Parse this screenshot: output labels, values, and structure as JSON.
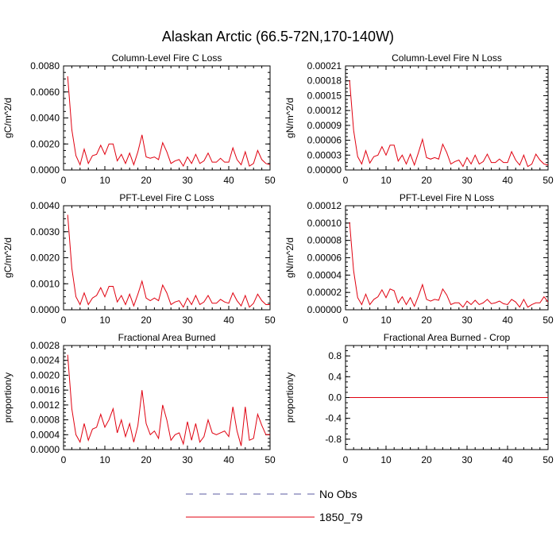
{
  "figure": {
    "title": "Alaskan Arctic (66.5-72N,170-140W)"
  },
  "legend": {
    "entries": [
      {
        "label": "No Obs",
        "color": "#5a5aa0",
        "dash": true
      },
      {
        "label": "1850_79",
        "color": "#e0000f",
        "dash": false
      }
    ]
  },
  "chart_data": [
    {
      "type": "line",
      "title": "Column-Level Fire C Loss",
      "ylabel": "gC/m^2/d",
      "xlim": [
        0,
        50
      ],
      "ylim": [
        0,
        0.008
      ],
      "xticks": [
        "0",
        "10",
        "20",
        "30",
        "40",
        "50"
      ],
      "yticks": [
        "0.0000",
        "0.0020",
        "0.0040",
        "0.0060",
        "0.0080"
      ],
      "series": [
        {
          "color": "#e0000f",
          "x": [
            1,
            2,
            3,
            4,
            5,
            6,
            7,
            8,
            9,
            10,
            11,
            12,
            13,
            14,
            15,
            16,
            17,
            18,
            19,
            20,
            21,
            22,
            23,
            24,
            25,
            26,
            27,
            28,
            29,
            30,
            31,
            32,
            33,
            34,
            35,
            36,
            37,
            38,
            39,
            40,
            41,
            42,
            43,
            44,
            45,
            46,
            47,
            48,
            49,
            50
          ],
          "y": [
            0.0072,
            0.0031,
            0.0011,
            0.0004,
            0.0016,
            0.0005,
            0.0011,
            0.0012,
            0.0019,
            0.0012,
            0.002,
            0.002,
            0.0007,
            0.0012,
            0.0005,
            0.0013,
            0.0004,
            0.0014,
            0.0027,
            0.001,
            0.0009,
            0.001,
            0.0008,
            0.0021,
            0.0014,
            0.0005,
            0.0007,
            0.0008,
            0.0003,
            0.001,
            0.0005,
            0.0012,
            0.0005,
            0.0007,
            0.0013,
            0.0006,
            0.0006,
            0.0009,
            0.0006,
            0.0006,
            0.0017,
            0.0008,
            0.0004,
            0.0014,
            0.0003,
            0.0005,
            0.0015,
            0.0008,
            0.0005,
            0.0004
          ]
        }
      ]
    },
    {
      "type": "line",
      "title": "Column-Level Fire N Loss",
      "ylabel": "gN/m^2/d",
      "xlim": [
        0,
        50
      ],
      "ylim": [
        0,
        0.00021
      ],
      "xticks": [
        "0",
        "10",
        "20",
        "30",
        "40",
        "50"
      ],
      "yticks": [
        "0.00000",
        "0.00003",
        "0.00006",
        "0.00009",
        "0.00012",
        "0.00015",
        "0.00018",
        "0.00021"
      ],
      "series": [
        {
          "color": "#e0000f",
          "x": [
            1,
            2,
            3,
            4,
            5,
            6,
            7,
            8,
            9,
            10,
            11,
            12,
            13,
            14,
            15,
            16,
            17,
            18,
            19,
            20,
            21,
            22,
            23,
            24,
            25,
            26,
            27,
            28,
            29,
            30,
            31,
            32,
            33,
            34,
            35,
            36,
            37,
            38,
            39,
            40,
            41,
            42,
            43,
            44,
            45,
            46,
            47,
            48,
            49,
            50
          ],
          "y": [
            0.000181,
            8e-05,
            2.7e-05,
            1.2e-05,
            3.9e-05,
            1.4e-05,
            2.7e-05,
            3e-05,
            4.7e-05,
            3e-05,
            5e-05,
            5e-05,
            1.8e-05,
            3e-05,
            1.2e-05,
            3.2e-05,
            1e-05,
            3.5e-05,
            6.2e-05,
            2.5e-05,
            2.2e-05,
            2.5e-05,
            2.2e-05,
            5.2e-05,
            3.5e-05,
            1.2e-05,
            1.7e-05,
            2e-05,
            7e-06,
            2.5e-05,
            1.2e-05,
            3e-05,
            1.2e-05,
            1.7e-05,
            3.2e-05,
            1.5e-05,
            1.5e-05,
            2.2e-05,
            1.5e-05,
            1.5e-05,
            3.7e-05,
            2e-05,
            1e-05,
            3e-05,
            7e-06,
            1.2e-05,
            3.2e-05,
            2e-05,
            1.2e-05,
            1e-05
          ]
        }
      ]
    },
    {
      "type": "line",
      "title": "PFT-Level Fire C Loss",
      "ylabel": "gC/m^2/d",
      "xlim": [
        0,
        50
      ],
      "ylim": [
        0,
        0.004
      ],
      "xticks": [
        "0",
        "10",
        "20",
        "30",
        "40",
        "50"
      ],
      "yticks": [
        "0.0000",
        "0.0010",
        "0.0020",
        "0.0030",
        "0.0040"
      ],
      "series": [
        {
          "color": "#e0000f",
          "x": [
            1,
            2,
            3,
            4,
            5,
            6,
            7,
            8,
            9,
            10,
            11,
            12,
            13,
            14,
            15,
            16,
            17,
            18,
            19,
            20,
            21,
            22,
            23,
            24,
            25,
            26,
            27,
            28,
            29,
            30,
            31,
            32,
            33,
            34,
            35,
            36,
            37,
            38,
            39,
            40,
            41,
            42,
            43,
            44,
            45,
            46,
            47,
            48,
            49,
            50
          ],
          "y": [
            0.00365,
            0.0016,
            0.0005,
            0.0002,
            0.00065,
            0.0002,
            0.00045,
            0.00055,
            0.00085,
            0.0005,
            0.0009,
            0.0009,
            0.0003,
            0.00055,
            0.0002,
            0.0006,
            0.00015,
            0.0006,
            0.0011,
            0.00045,
            0.00035,
            0.00045,
            0.00035,
            0.00095,
            0.00065,
            0.0002,
            0.0003,
            0.00035,
            0.0001,
            0.00045,
            0.0002,
            0.00055,
            0.0002,
            0.0003,
            0.00055,
            0.00025,
            0.00025,
            0.0004,
            0.0003,
            0.00025,
            0.00065,
            0.00035,
            0.00015,
            0.00055,
            0.0001,
            0.00025,
            0.0006,
            0.00035,
            0.0002,
            0.0002
          ]
        }
      ]
    },
    {
      "type": "line",
      "title": "PFT-Level Fire N Loss",
      "ylabel": "gN/m^2/d",
      "xlim": [
        0,
        50
      ],
      "ylim": [
        0,
        0.00012
      ],
      "xticks": [
        "0",
        "10",
        "20",
        "30",
        "40",
        "50"
      ],
      "yticks": [
        "0.00000",
        "0.00002",
        "0.00004",
        "0.00006",
        "0.00008",
        "0.00010",
        "0.00012"
      ],
      "series": [
        {
          "color": "#e0000f",
          "x": [
            1,
            2,
            3,
            4,
            5,
            6,
            7,
            8,
            9,
            10,
            11,
            12,
            13,
            14,
            15,
            16,
            17,
            18,
            19,
            20,
            21,
            22,
            23,
            24,
            25,
            26,
            27,
            28,
            29,
            30,
            31,
            32,
            33,
            34,
            35,
            36,
            37,
            38,
            39,
            40,
            41,
            42,
            43,
            44,
            45,
            46,
            47,
            48,
            49,
            50
          ],
          "y": [
            0.000101,
            4.5e-05,
            1.4e-05,
            6e-06,
            1.8e-05,
            6e-06,
            1.2e-05,
            1.5e-05,
            2.3e-05,
            1.4e-05,
            2.4e-05,
            2.2e-05,
            8e-06,
            1.5e-05,
            6e-06,
            1.4e-05,
            4e-06,
            1.6e-05,
            2.9e-05,
            1.2e-05,
            1e-05,
            1.2e-05,
            1.1e-05,
            2.4e-05,
            1.7e-05,
            6e-06,
            8e-06,
            8e-06,
            3e-06,
            1e-05,
            6e-06,
            1.1e-05,
            6e-06,
            8e-06,
            1.2e-05,
            7e-06,
            8e-06,
            1e-05,
            7e-06,
            6e-06,
            1.2e-05,
            9e-06,
            3e-06,
            1.2e-05,
            3e-06,
            6e-06,
            8e-06,
            8e-06,
            1.5e-05,
            9e-06
          ]
        }
      ]
    },
    {
      "type": "line",
      "title": "Fractional Area Burned",
      "ylabel": "proportion/y",
      "xlim": [
        0,
        50
      ],
      "ylim": [
        0,
        0.0028
      ],
      "xticks": [
        "0",
        "10",
        "20",
        "30",
        "40",
        "50"
      ],
      "yticks": [
        "0.0000",
        "0.0004",
        "0.0008",
        "0.0012",
        "0.0016",
        "0.0020",
        "0.0024",
        "0.0028"
      ],
      "series": [
        {
          "color": "#e0000f",
          "x": [
            1,
            2,
            3,
            4,
            5,
            6,
            7,
            8,
            9,
            10,
            11,
            12,
            13,
            14,
            15,
            16,
            17,
            18,
            19,
            20,
            21,
            22,
            23,
            24,
            25,
            26,
            27,
            28,
            29,
            30,
            31,
            32,
            33,
            34,
            35,
            36,
            37,
            38,
            39,
            40,
            41,
            42,
            43,
            44,
            45,
            46,
            47,
            48,
            49,
            50
          ],
          "y": [
            0.00255,
            0.0011,
            0.0004,
            0.0002,
            0.0007,
            0.00025,
            0.00055,
            0.0006,
            0.00095,
            0.0006,
            0.0008,
            0.0011,
            0.00045,
            0.0008,
            0.00035,
            0.0007,
            0.0002,
            0.00065,
            0.0016,
            0.0007,
            0.0004,
            0.0005,
            0.0003,
            0.0012,
            0.0008,
            0.00025,
            0.0004,
            0.00045,
            0.00015,
            0.00075,
            0.00025,
            0.0007,
            0.0002,
            0.00035,
            0.0008,
            0.00045,
            0.0004,
            0.00045,
            0.0005,
            0.00035,
            0.00115,
            0.0005,
            0.0001,
            0.00115,
            0.00025,
            0.0003,
            0.00095,
            0.00065,
            0.0004,
            0.0004
          ]
        }
      ]
    },
    {
      "type": "line",
      "title": "Fractional Area Burned - Crop",
      "ylabel": "proportion/y",
      "xlim": [
        0,
        50
      ],
      "ylim": [
        -1,
        1
      ],
      "xticks": [
        "0",
        "10",
        "20",
        "30",
        "40",
        "50"
      ],
      "yticks": [
        "-0.8",
        "-0.4",
        "0.0",
        "0.4",
        "0.8"
      ],
      "ytickvals": [
        -0.8,
        -0.4,
        0.0,
        0.4,
        0.8
      ],
      "series": [
        {
          "color": "#e0000f",
          "x": [
            1,
            50
          ],
          "y": [
            0,
            0
          ]
        }
      ]
    }
  ]
}
